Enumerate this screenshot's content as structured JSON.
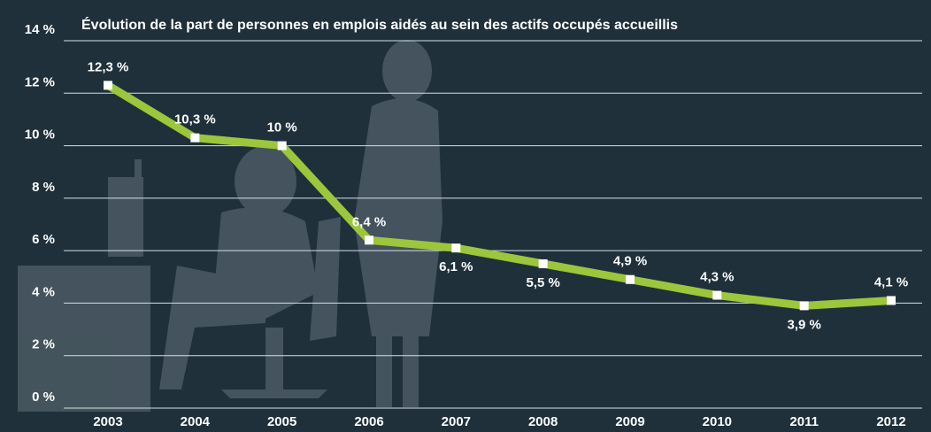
{
  "chart_data": {
    "type": "line",
    "title": "Évolution de la part de personnes en emplois aidés au sein des actifs occupés accueillis",
    "categories": [
      "2003",
      "2004",
      "2005",
      "2006",
      "2007",
      "2008",
      "2009",
      "2010",
      "2011",
      "2012"
    ],
    "series": [
      {
        "color": "#9cc63b",
        "values": [
          12.3,
          10.3,
          10,
          6.4,
          6.1,
          5.5,
          4.9,
          4.3,
          3.9,
          4.1
        ],
        "value_labels": [
          "12,3 %",
          "10,3 %",
          "10 %",
          "6,4 %",
          "6,1 %",
          "5,5 %",
          "4,9 %",
          "4,3 %",
          "3,9 %",
          "4,1 %"
        ]
      }
    ],
    "ylim": [
      0,
      14
    ],
    "yticks": [
      {
        "value": 0,
        "label": "0 %"
      },
      {
        "value": 2,
        "label": "2 %"
      },
      {
        "value": 4,
        "label": "4 %"
      },
      {
        "value": 6,
        "label": "6 %"
      },
      {
        "value": 8,
        "label": "8 %"
      },
      {
        "value": 10,
        "label": "10 %"
      },
      {
        "value": 12,
        "label": "12 %"
      },
      {
        "value": 14,
        "label": "14 %"
      }
    ],
    "grid": true
  }
}
